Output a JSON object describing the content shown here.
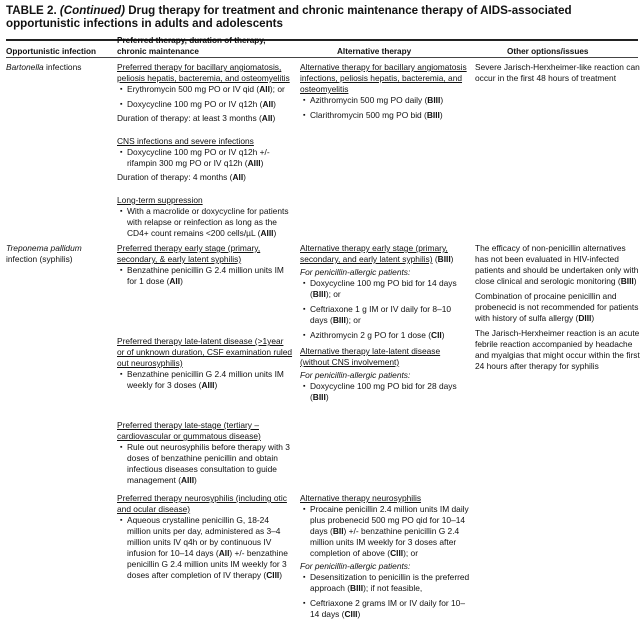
{
  "title": {
    "label": "TABLE 2.",
    "continued": "(Continued)",
    "text": "Drug therapy for treatment and chronic maintenance therapy of AIDS-associated opportunistic infections in adults and adolescents"
  },
  "columns": [
    "Opportunistic infection",
    "Preferred therapy, duration of therapy, chronic maintenance",
    "Alternative therapy",
    "Other options/issues"
  ],
  "rows": [
    {
      "infection_italic": "Bartonella",
      "infection_rest": " infections",
      "cells": [
        {
          "key": "bart-pref",
          "groups": [
            [
              {
                "type": "heading",
                "seg": [
                  "Preferred therapy for bacillary angiomatosis, peliosis hepatis, bacteremia, and osteomyelitis"
                ]
              },
              {
                "type": "bullet",
                "seg": [
                  "Erythromycin 500 mg PO or IV qid (",
                  {
                    "b": "AII"
                  },
                  "); or"
                ]
              },
              {
                "type": "bullet",
                "seg": [
                  "Doxycycline 100 mg PO or IV q12h (",
                  {
                    "b": "AII"
                  },
                  ")"
                ]
              },
              {
                "type": "para",
                "seg": [
                  "Duration of therapy: at least 3 months (",
                  {
                    "b": "AII"
                  },
                  ")"
                ]
              }
            ],
            [
              {
                "type": "heading",
                "seg": [
                  "CNS infections and severe infections"
                ]
              },
              {
                "type": "bullet",
                "seg": [
                  "Doxycycline 100 mg PO or IV q12h +/- rifampin 300 mg PO or IV q12h (",
                  {
                    "b": "AIII"
                  },
                  ")"
                ]
              },
              {
                "type": "para",
                "seg": [
                  "Duration of therapy: 4 months (",
                  {
                    "b": "AII"
                  },
                  ")"
                ]
              }
            ],
            [
              {
                "type": "heading",
                "seg": [
                  "Long-term suppression"
                ]
              },
              {
                "type": "bullet",
                "seg": [
                  "With a macrolide or doxycycline for patients with relapse or reinfection as long as the CD4+ count remains <200 cells/µL (",
                  {
                    "b": "AIII"
                  },
                  ")"
                ]
              }
            ]
          ]
        },
        {
          "key": "bart-alt",
          "groups": [
            [
              {
                "type": "heading",
                "seg": [
                  "Alternative therapy for bacillary angiomatosis infections, peliosis hepatis, bacteremia, and osteomyelitis"
                ]
              },
              {
                "type": "bullet",
                "seg": [
                  "Azithromycin 500 mg PO daily (",
                  {
                    "b": "BIII"
                  },
                  ")"
                ]
              },
              {
                "type": "bullet",
                "seg": [
                  "Clarithromycin 500 mg PO bid (",
                  {
                    "b": "BIII"
                  },
                  ")"
                ]
              }
            ]
          ]
        },
        {
          "key": "bart-other",
          "groups": [
            [
              {
                "type": "para",
                "seg": [
                  "Severe Jarisch-Herxheimer-like reaction can occur in the first 48 hours of treatment"
                ]
              }
            ]
          ]
        }
      ]
    },
    {
      "infection_italic": "Treponema pallidum",
      "infection_rest": " infection (syphilis)",
      "cells": [
        {
          "key": "trep-pref-early",
          "groups": [
            [
              {
                "type": "heading",
                "seg": [
                  "Preferred therapy early stage (primary, secondary, & early latent syphilis)"
                ]
              },
              {
                "type": "bullet",
                "seg": [
                  "Benzathine penicillin G 2.4 million units IM for 1 dose (",
                  {
                    "b": "AII"
                  },
                  ")"
                ]
              }
            ]
          ]
        },
        {
          "key": "trep-pref-late",
          "groups": [
            [
              {
                "type": "heading",
                "seg": [
                  "Preferred therapy late-latent disease (>1year or of unknown duration, CSF examination ruled out neurosyphilis)"
                ]
              },
              {
                "type": "bullet",
                "seg": [
                  "Benzathine penicillin G 2.4 million units IM weekly for 3 doses (",
                  {
                    "b": "AIII"
                  },
                  ")"
                ]
              }
            ]
          ]
        },
        {
          "key": "trep-pref-tert",
          "groups": [
            [
              {
                "type": "heading",
                "seg": [
                  "Preferred therapy late-stage (tertiary – cardiovascular or gummatous disease)"
                ]
              },
              {
                "type": "bullet",
                "seg": [
                  "Rule out neurosyphilis before therapy with 3 doses of benzathine penicillin and obtain infectious diseases consultation to guide management (",
                  {
                    "b": "AIII"
                  },
                  ")"
                ]
              }
            ]
          ]
        },
        {
          "key": "trep-pref-neuro",
          "groups": [
            [
              {
                "type": "heading",
                "seg": [
                  "Preferred therapy neurosyphilis (including otic and ocular disease)"
                ]
              },
              {
                "type": "bullet",
                "seg": [
                  "Aqueous crystalline penicillin G, 18-24 million units per day, administered as 3–4 million units IV q4h or by continuous IV infusion for 10–14 days (",
                  {
                    "b": "AII"
                  },
                  ") +/- benzathine penicillin G 2.4 million units IM weekly for 3 doses after completion of IV therapy (",
                  {
                    "b": "CIII"
                  },
                  ")"
                ]
              }
            ]
          ]
        },
        {
          "key": "trep-alt-early",
          "groups": [
            [
              {
                "type": "heading",
                "seg": [
                  "Alternative therapy early stage (primary, secondary, and early latent syphilis)"
                ],
                "after": [
                  " (",
                  {
                    "b": "BIII"
                  },
                  ")"
                ]
              },
              {
                "type": "ital",
                "seg": [
                  "For penicillin-allergic patients:"
                ]
              },
              {
                "type": "bullet",
                "seg": [
                  "Doxycycline 100 mg PO bid for 14 days (",
                  {
                    "b": "BIII"
                  },
                  "); or"
                ]
              },
              {
                "type": "bullet",
                "seg": [
                  "Ceftriaxone 1 g IM or IV daily for 8–10 days (",
                  {
                    "b": "BIII"
                  },
                  "); or"
                ]
              },
              {
                "type": "bullet",
                "seg": [
                  "Azithromycin 2 g PO for 1 dose (",
                  {
                    "b": "CII"
                  },
                  ")"
                ]
              }
            ]
          ]
        },
        {
          "key": "trep-alt-late",
          "groups": [
            [
              {
                "type": "heading",
                "seg": [
                  "Alternative therapy late-latent disease (without CNS involvement)"
                ]
              },
              {
                "type": "ital",
                "seg": [
                  "For penicillin-allergic patients:"
                ]
              },
              {
                "type": "bullet",
                "seg": [
                  "Doxycycline 100 mg PO bid for 28 days (",
                  {
                    "b": "BIII"
                  },
                  ")"
                ]
              }
            ]
          ]
        },
        {
          "key": "trep-alt-neuro",
          "groups": [
            [
              {
                "type": "heading",
                "seg": [
                  "Alternative therapy neurosyphilis"
                ]
              },
              {
                "type": "bullet",
                "seg": [
                  "Procaine penicillin 2.4 million units IM daily plus probenecid 500 mg PO qid for 10–14 days (",
                  {
                    "b": "BII"
                  },
                  ") +/- benzathine penicillin G 2.4 million units IM weekly for 3 doses after completion of above (",
                  {
                    "b": "CIII"
                  },
                  "); or"
                ]
              },
              {
                "type": "ital",
                "seg": [
                  "For penicillin-allergic patients:"
                ]
              },
              {
                "type": "bullet",
                "seg": [
                  "Desensitization to penicillin is the preferred approach (",
                  {
                    "b": "BIII"
                  },
                  "); if not feasible,"
                ]
              },
              {
                "type": "bullet",
                "seg": [
                  "Ceftriaxone 2 grams IM or IV daily for 10–14 days (",
                  {
                    "b": "CIII"
                  },
                  ")"
                ]
              }
            ]
          ]
        },
        {
          "key": "trep-other",
          "groups": [
            [
              {
                "type": "para",
                "seg": [
                  "The efficacy of non-penicillin alternatives has not been evaluated in HIV-infected patients and should be undertaken only with close clinical and serologic monitoring (",
                  {
                    "b": "BIII"
                  },
                  ")"
                ]
              },
              {
                "type": "para",
                "seg": [
                  "Combination of procaine penicillin and probenecid is not recommended for patients with history of sulfa allergy (",
                  {
                    "b": "DIII"
                  },
                  ")"
                ]
              },
              {
                "type": "para",
                "seg": [
                  "The Jarisch-Herxheimer reaction is an acute febrile reaction accompanied by headache and myalgias that might occur within the first 24 hours after therapy for syphilis"
                ]
              }
            ]
          ]
        }
      ]
    }
  ]
}
